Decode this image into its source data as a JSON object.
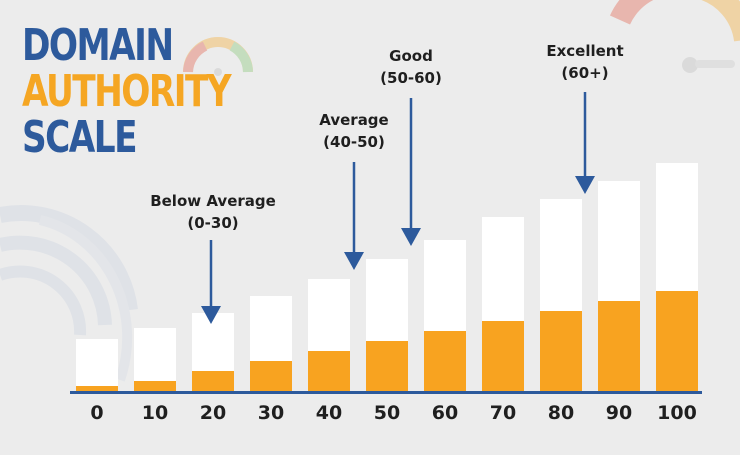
{
  "title": {
    "line1": "DOMAIN",
    "line2": "AUTHORITY",
    "line3": "SCALE"
  },
  "colors": {
    "title_blue": "#2d5a9c",
    "title_orange": "#f5a623",
    "bar_fill": "#f8a320",
    "bar_empty": "#ffffff",
    "axis": "#2d5a9c",
    "arrow": "#2d5a9c",
    "background": "#ececec"
  },
  "annotations": [
    {
      "line1": "Below Average",
      "line2": "(0-30)"
    },
    {
      "line1": "Average",
      "line2": "(40-50)"
    },
    {
      "line1": "Good",
      "line2": "(50-60)"
    },
    {
      "line1": "Excellent",
      "line2": "(60+)"
    }
  ],
  "chart_data": {
    "type": "bar",
    "categories": [
      "0",
      "10",
      "20",
      "30",
      "40",
      "50",
      "60",
      "70",
      "80",
      "90",
      "100"
    ],
    "series": [
      {
        "values": [
          52,
          63,
          78,
          95,
          112,
          132,
          151,
          174,
          192,
          210,
          228
        ]
      },
      {
        "values": [
          5,
          10,
          20,
          30,
          40,
          50,
          60,
          70,
          80,
          90,
          100
        ]
      }
    ],
    "annotations": [
      {
        "text": "Below Average (0-30)",
        "category": "20"
      },
      {
        "text": "Average (40-50)",
        "category": "40"
      },
      {
        "text": "Good (50-60)",
        "category": "50"
      },
      {
        "text": "Excellent (60+)",
        "category": "80"
      }
    ],
    "grid": false,
    "legend": "none"
  }
}
